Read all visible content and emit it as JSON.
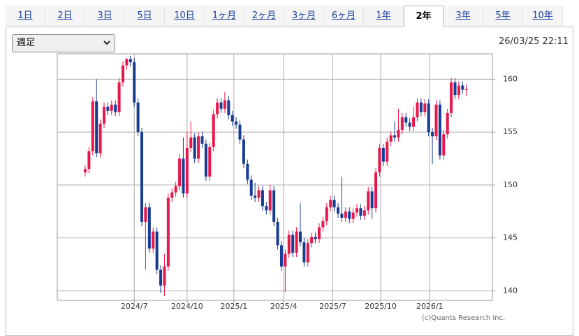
{
  "tabs": [
    "1日",
    "2日",
    "3日",
    "5日",
    "10日",
    "1ヶ月",
    "2ヶ月",
    "3ヶ月",
    "6ヶ月",
    "1年",
    "2年",
    "3年",
    "5年",
    "10年"
  ],
  "selected_tab": 10,
  "period_select": "週足",
  "timestamp": "26/03/25 22:11",
  "chart_data": {
    "type": "candlestick",
    "credit": "(c)Quants Research Inc.",
    "up_color": "#e8174b",
    "down_color": "#183c94",
    "grid": true,
    "ylim": [
      139.1,
      162.4
    ],
    "yticks": [
      140,
      145,
      150,
      155,
      160
    ],
    "xlim": [
      -7.4,
      107.9
    ],
    "xticks": [
      {
        "value": 13,
        "label": "2024/7"
      },
      {
        "value": 27,
        "label": "2024/10"
      },
      {
        "value": 39.4,
        "label": "2025/1"
      },
      {
        "value": 52.6,
        "label": "2025/4"
      },
      {
        "value": 65.6,
        "label": "2025/7"
      },
      {
        "value": 78.3,
        "label": "2025/10"
      },
      {
        "value": 91.3,
        "label": "2026/1"
      }
    ],
    "open": [
      151.2,
      151.5,
      153.2,
      157.9,
      153.0,
      155.8,
      157.4,
      157.0,
      157.6,
      156.9,
      159.7,
      161.3,
      161.9,
      161.6,
      157.8,
      155.0,
      146.5,
      147.9,
      144.0,
      145.6,
      142.0,
      140.5,
      142.3,
      148.8,
      149.3,
      149.9,
      152.5,
      149.2,
      153.5,
      154.5,
      152.5,
      154.6,
      153.9,
      150.8,
      153.6,
      156.7,
      157.8,
      157.2,
      158.0,
      156.6,
      156.0,
      155.7,
      154.3,
      152.0,
      150.5,
      149.0,
      148.8,
      149.5,
      148.0,
      147.6,
      149.5,
      146.5,
      144.3,
      142.3,
      143.5,
      145.3,
      143.6,
      145.6,
      144.6,
      142.7,
      144.5,
      145.1,
      144.9,
      146.0,
      146.6,
      147.9,
      148.6,
      147.9,
      147.3,
      146.9,
      147.5,
      146.8,
      147.4,
      147.8,
      147.1,
      147.6,
      149.4,
      147.8,
      151.2,
      153.5,
      152.2,
      154.1,
      154.7,
      154.5,
      155.2,
      156.4,
      155.9,
      155.5,
      156.4,
      157.8,
      156.9,
      157.7,
      155.0,
      154.6,
      157.6,
      152.8,
      154.8,
      156.8,
      159.7,
      158.5,
      159.4,
      159.0
    ],
    "high": [
      151.9,
      153.6,
      158.3,
      160.0,
      156.2,
      157.8,
      157.8,
      158.0,
      158.0,
      160.1,
      161.7,
      162.0,
      162.2,
      162.0,
      158.2,
      155.4,
      148.3,
      148.3,
      146.0,
      146.0,
      142.4,
      143.5,
      149.2,
      149.7,
      150.3,
      152.9,
      154.5,
      155.0,
      156.0,
      154.9,
      155.0,
      155.0,
      154.3,
      154.0,
      157.1,
      158.2,
      158.2,
      158.8,
      158.4,
      157.0,
      156.4,
      156.1,
      154.7,
      152.4,
      150.9,
      150.2,
      149.9,
      149.9,
      148.4,
      150.0,
      149.9,
      146.9,
      144.7,
      143.9,
      145.7,
      145.7,
      146.0,
      148.3,
      145.0,
      144.9,
      145.5,
      145.5,
      146.4,
      147.0,
      148.3,
      149.0,
      149.0,
      148.3,
      150.8,
      147.9,
      147.9,
      147.8,
      148.2,
      148.2,
      148.0,
      149.8,
      149.8,
      151.6,
      153.9,
      153.9,
      154.5,
      155.1,
      156.0,
      157.2,
      156.8,
      156.8,
      156.3,
      157.4,
      158.2,
      158.2,
      158.1,
      158.1,
      155.4,
      158.0,
      158.0,
      155.2,
      157.2,
      160.1,
      160.1,
      159.8,
      159.8,
      159.5
    ],
    "low": [
      150.8,
      151.1,
      152.8,
      152.6,
      152.6,
      155.4,
      156.6,
      156.6,
      156.5,
      156.5,
      159.3,
      160.9,
      161.2,
      157.4,
      154.6,
      146.1,
      142.0,
      143.6,
      143.6,
      141.6,
      139.8,
      139.5,
      141.9,
      148.4,
      148.9,
      149.5,
      148.8,
      148.8,
      153.1,
      152.1,
      152.1,
      153.5,
      150.4,
      150.4,
      153.2,
      156.3,
      156.8,
      156.8,
      156.2,
      155.6,
      155.3,
      153.9,
      151.6,
      150.1,
      148.6,
      148.4,
      148.4,
      147.6,
      147.2,
      147.2,
      146.1,
      143.9,
      141.9,
      139.9,
      143.1,
      143.2,
      143.2,
      144.2,
      142.3,
      142.3,
      144.1,
      144.5,
      144.5,
      145.6,
      146.2,
      147.5,
      147.5,
      146.9,
      146.5,
      146.5,
      146.4,
      146.4,
      147.0,
      146.7,
      146.7,
      147.2,
      146.8,
      147.4,
      150.8,
      151.8,
      151.8,
      153.7,
      154.1,
      154.1,
      154.8,
      155.5,
      155.1,
      155.1,
      156.0,
      156.5,
      156.5,
      154.6,
      152.0,
      154.2,
      152.4,
      152.4,
      154.4,
      156.4,
      158.1,
      158.1,
      158.6,
      158.4
    ],
    "close": [
      151.5,
      153.2,
      157.9,
      153.0,
      155.8,
      157.4,
      157.0,
      157.6,
      156.9,
      159.7,
      161.3,
      161.9,
      161.6,
      157.8,
      155.0,
      146.5,
      147.9,
      144.0,
      145.6,
      142.0,
      140.5,
      142.3,
      148.8,
      149.3,
      149.9,
      152.5,
      149.2,
      153.5,
      154.5,
      152.5,
      154.6,
      153.9,
      150.8,
      153.6,
      156.7,
      157.8,
      157.2,
      158.0,
      156.6,
      156.0,
      155.7,
      154.3,
      152.0,
      150.5,
      149.0,
      148.8,
      149.5,
      148.0,
      147.6,
      149.5,
      146.5,
      144.3,
      142.3,
      143.5,
      145.3,
      143.6,
      145.6,
      144.6,
      142.7,
      144.5,
      145.1,
      144.9,
      146.0,
      146.6,
      147.9,
      148.6,
      147.9,
      147.3,
      146.9,
      147.5,
      146.8,
      147.4,
      147.8,
      147.1,
      147.6,
      149.4,
      147.8,
      151.2,
      153.5,
      152.2,
      154.1,
      154.7,
      154.5,
      155.2,
      156.4,
      155.9,
      155.5,
      156.4,
      157.8,
      156.9,
      157.7,
      155.0,
      154.6,
      157.6,
      152.8,
      154.8,
      156.8,
      159.7,
      158.5,
      159.4,
      159.0,
      159.1
    ]
  }
}
